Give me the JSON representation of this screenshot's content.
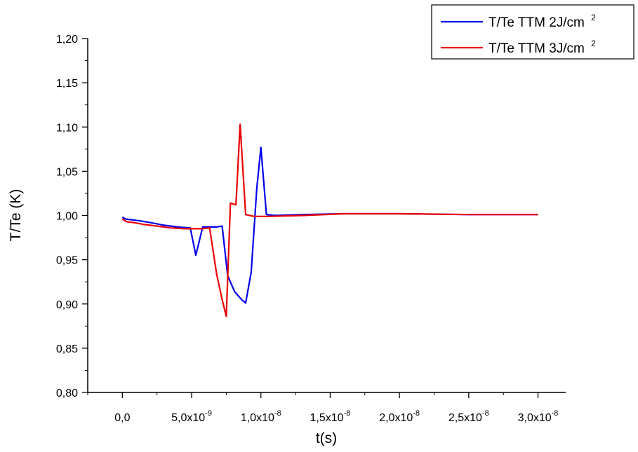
{
  "chart_data": {
    "type": "line",
    "title": "",
    "xlabel": "t(s)",
    "ylabel": "T/Te (K)",
    "xlim": [
      -2.5e-09,
      3.2e-08
    ],
    "ylim": [
      0.8,
      1.2
    ],
    "grid": false,
    "legend_position": "top-right",
    "x_ticks": [
      {
        "value": 0,
        "mantissa": "0,0",
        "exp": ""
      },
      {
        "value": 5e-09,
        "mantissa": "5,0x10",
        "exp": "-9"
      },
      {
        "value": 1e-08,
        "mantissa": "1,0x10",
        "exp": "-8"
      },
      {
        "value": 1.5e-08,
        "mantissa": "1,5x10",
        "exp": "-8"
      },
      {
        "value": 2e-08,
        "mantissa": "2,0x10",
        "exp": "-8"
      },
      {
        "value": 2.5e-08,
        "mantissa": "2,5x10",
        "exp": "-8"
      },
      {
        "value": 3e-08,
        "mantissa": "3,0x10",
        "exp": "-8"
      }
    ],
    "y_ticks": [
      {
        "value": 0.8,
        "label": "0,80"
      },
      {
        "value": 0.85,
        "label": "0,85"
      },
      {
        "value": 0.9,
        "label": "0,90"
      },
      {
        "value": 0.95,
        "label": "0,95"
      },
      {
        "value": 1.0,
        "label": "1,00"
      },
      {
        "value": 1.05,
        "label": "1,05"
      },
      {
        "value": 1.1,
        "label": "1,10"
      },
      {
        "value": 1.15,
        "label": "1,15"
      },
      {
        "value": 1.2,
        "label": "1,20"
      }
    ],
    "series": [
      {
        "name": "T/Te TTM 2J/cm",
        "name_sup": "2",
        "color": "#0000ee",
        "x": [
          0,
          2.5e-10,
          7.5e-10,
          1.25e-09,
          2e-09,
          3e-09,
          4e-09,
          4.9e-09,
          5.3e-09,
          5.8e-09,
          6.3e-09,
          6.8e-09,
          7.2e-09,
          7.6e-09,
          8.1e-09,
          8.6e-09,
          8.9e-09,
          9.3e-09,
          9.7e-09,
          1e-08,
          1.04e-08,
          1.1e-08,
          1.3e-08,
          1.6e-08,
          2e-08,
          2.5e-08,
          3e-08
        ],
        "y": [
          0.998,
          0.996,
          0.995,
          0.994,
          0.992,
          0.989,
          0.987,
          0.986,
          0.955,
          0.987,
          0.987,
          0.987,
          0.988,
          0.932,
          0.914,
          0.905,
          0.901,
          0.936,
          1.03,
          1.077,
          1.001,
          1.0,
          1.001,
          1.002,
          1.002,
          1.001,
          1.001
        ]
      },
      {
        "name": "T/Te TTM 3J/cm",
        "name_sup": "2",
        "color": "#ee0000",
        "x": [
          0,
          3e-10,
          8e-10,
          1.5e-09,
          2.5e-09,
          3.5e-09,
          4.5e-09,
          5.3e-09,
          5.8e-09,
          6.3e-09,
          6.8e-09,
          7.2e-09,
          7.5e-09,
          7.8e-09,
          8.2e-09,
          8.5e-09,
          8.9e-09,
          9.5e-09,
          1.05e-08,
          1.3e-08,
          1.6e-08,
          2e-08,
          2.5e-08,
          3e-08
        ],
        "y": [
          0.996,
          0.993,
          0.992,
          0.99,
          0.988,
          0.986,
          0.985,
          0.985,
          0.985,
          0.986,
          0.934,
          0.905,
          0.886,
          1.014,
          1.012,
          1.103,
          1.001,
          0.999,
          0.999,
          1.0,
          1.002,
          1.002,
          1.001,
          1.001
        ]
      }
    ]
  }
}
